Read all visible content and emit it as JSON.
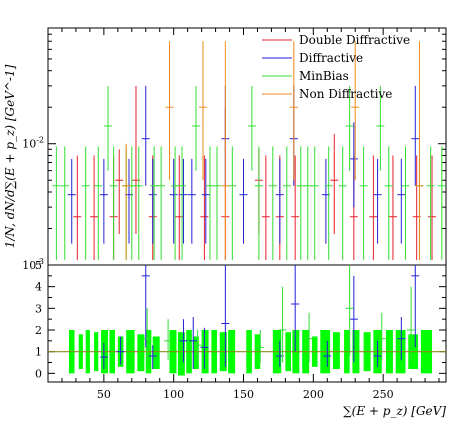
{
  "chart_data": [
    {
      "type": "scatter",
      "panel": "main",
      "ylabel": "1/N, dN/d∑(E + p_z) [GeV^-1]",
      "yscale": "log",
      "ylim": [
        0.001,
        0.09
      ],
      "xlim": [
        10,
        295
      ],
      "y_tick_labels": [
        "10^-3",
        "10^-2"
      ],
      "grid": false,
      "legend_position": "top-right",
      "colors": {
        "Double Diffractive": "#e8202a",
        "Diffractive": "#2121d8",
        "MinBias": "#33dd33",
        "Non Diffractive": "#ee8a1c"
      },
      "series": [
        {
          "name": "Double Diffractive",
          "points": [
            {
              "x": 31,
              "y": 0.0025,
              "ylo": 0.0011,
              "yhi": 0.008
            },
            {
              "x": 43,
              "y": 0.0025,
              "ylo": 0.0011,
              "yhi": 0.008
            },
            {
              "x": 57,
              "y": 0.0025,
              "ylo": 0.0011,
              "yhi": 0.008
            },
            {
              "x": 61,
              "y": 0.005,
              "ylo": 0.0018,
              "yhi": 0.009
            },
            {
              "x": 73,
              "y": 0.005,
              "ylo": 0.0018,
              "yhi": 0.03
            },
            {
              "x": 85,
              "y": 0.0025,
              "ylo": 0.0011,
              "yhi": 0.008
            },
            {
              "x": 104,
              "y": 0.0025,
              "ylo": 0.0011,
              "yhi": 0.008
            },
            {
              "x": 122,
              "y": 0.0025,
              "ylo": 0.0011,
              "yhi": 0.008
            },
            {
              "x": 137,
              "y": 0.0025,
              "ylo": 0.0011,
              "yhi": 0.02
            },
            {
              "x": 161,
              "y": 0.005,
              "ylo": 0.0018,
              "yhi": 0.009
            },
            {
              "x": 166,
              "y": 0.0025,
              "ylo": 0.0011,
              "yhi": 0.008
            },
            {
              "x": 176,
              "y": 0.0025,
              "ylo": 0.0011,
              "yhi": 0.008
            },
            {
              "x": 187,
              "y": 0.0025,
              "ylo": 0.0011,
              "yhi": 0.008
            },
            {
              "x": 215,
              "y": 0.005,
              "ylo": 0.0018,
              "yhi": 0.012
            },
            {
              "x": 229,
              "y": 0.0025,
              "ylo": 0.0011,
              "yhi": 0.008
            },
            {
              "x": 243,
              "y": 0.0025,
              "ylo": 0.0011,
              "yhi": 0.008
            },
            {
              "x": 257,
              "y": 0.0025,
              "ylo": 0.0011,
              "yhi": 0.008
            },
            {
              "x": 274,
              "y": 0.0025,
              "ylo": 0.0011,
              "yhi": 0.008
            },
            {
              "x": 285,
              "y": 0.0025,
              "ylo": 0.0011,
              "yhi": 0.008
            }
          ]
        },
        {
          "name": "Diffractive",
          "points": [
            {
              "x": 27,
              "y": 0.0038,
              "ylo": 0.0015,
              "yhi": 0.0075
            },
            {
              "x": 50,
              "y": 0.0038,
              "ylo": 0.0015,
              "yhi": 0.0075
            },
            {
              "x": 68,
              "y": 0.0038,
              "ylo": 0.0015,
              "yhi": 0.0075
            },
            {
              "x": 80,
              "y": 0.011,
              "ylo": 0.0045,
              "yhi": 0.03
            },
            {
              "x": 85,
              "y": 0.0038,
              "ylo": 0.0015,
              "yhi": 0.0075
            },
            {
              "x": 100,
              "y": 0.0038,
              "ylo": 0.0015,
              "yhi": 0.0075
            },
            {
              "x": 107,
              "y": 0.0038,
              "ylo": 0.0015,
              "yhi": 0.0075
            },
            {
              "x": 113,
              "y": 0.0038,
              "ylo": 0.0015,
              "yhi": 0.0075
            },
            {
              "x": 123,
              "y": 0.0038,
              "ylo": 0.0015,
              "yhi": 0.0075
            },
            {
              "x": 137,
              "y": 0.011,
              "ylo": 0.0045,
              "yhi": 0.03
            },
            {
              "x": 150,
              "y": 0.0038,
              "ylo": 0.0015,
              "yhi": 0.0075
            },
            {
              "x": 176,
              "y": 0.0038,
              "ylo": 0.0015,
              "yhi": 0.0075
            },
            {
              "x": 186,
              "y": 0.011,
              "ylo": 0.0045,
              "yhi": 0.03
            },
            {
              "x": 209,
              "y": 0.0038,
              "ylo": 0.0015,
              "yhi": 0.0075
            },
            {
              "x": 229,
              "y": 0.0075,
              "ylo": 0.003,
              "yhi": 0.015
            },
            {
              "x": 246,
              "y": 0.0038,
              "ylo": 0.0015,
              "yhi": 0.0075
            },
            {
              "x": 263,
              "y": 0.0038,
              "ylo": 0.0015,
              "yhi": 0.0075
            },
            {
              "x": 273,
              "y": 0.011,
              "ylo": 0.0045,
              "yhi": 0.03
            }
          ]
        },
        {
          "name": "MinBias",
          "points": [
            {
              "x": 16,
              "y": 0.0045,
              "ylo": 0.0011,
              "yhi": 0.0095
            },
            {
              "x": 22,
              "y": 0.0045,
              "ylo": 0.0011,
              "yhi": 0.0095
            },
            {
              "x": 37,
              "y": 0.0045,
              "ylo": 0.0011,
              "yhi": 0.0095
            },
            {
              "x": 46,
              "y": 0.0045,
              "ylo": 0.0011,
              "yhi": 0.0095
            },
            {
              "x": 53,
              "y": 0.014,
              "ylo": 0.006,
              "yhi": 0.03
            },
            {
              "x": 57,
              "y": 0.0045,
              "ylo": 0.0011,
              "yhi": 0.0095
            },
            {
              "x": 66,
              "y": 0.0045,
              "ylo": 0.0011,
              "yhi": 0.0095
            },
            {
              "x": 70,
              "y": 0.0045,
              "ylo": 0.0011,
              "yhi": 0.0095
            },
            {
              "x": 75,
              "y": 0.0045,
              "ylo": 0.0011,
              "yhi": 0.0095
            },
            {
              "x": 86,
              "y": 0.0045,
              "ylo": 0.0011,
              "yhi": 0.0095
            },
            {
              "x": 91,
              "y": 0.0045,
              "ylo": 0.0011,
              "yhi": 0.0095
            },
            {
              "x": 101,
              "y": 0.0045,
              "ylo": 0.0011,
              "yhi": 0.0095
            },
            {
              "x": 106,
              "y": 0.0045,
              "ylo": 0.0011,
              "yhi": 0.0095
            },
            {
              "x": 116,
              "y": 0.014,
              "ylo": 0.006,
              "yhi": 0.03
            },
            {
              "x": 126,
              "y": 0.0045,
              "ylo": 0.0011,
              "yhi": 0.0095
            },
            {
              "x": 131,
              "y": 0.0045,
              "ylo": 0.0011,
              "yhi": 0.0095
            },
            {
              "x": 142,
              "y": 0.0045,
              "ylo": 0.0011,
              "yhi": 0.0095
            },
            {
              "x": 156,
              "y": 0.014,
              "ylo": 0.006,
              "yhi": 0.03
            },
            {
              "x": 161,
              "y": 0.0045,
              "ylo": 0.0011,
              "yhi": 0.0095
            },
            {
              "x": 171,
              "y": 0.0045,
              "ylo": 0.0011,
              "yhi": 0.0095
            },
            {
              "x": 181,
              "y": 0.0045,
              "ylo": 0.0011,
              "yhi": 0.0095
            },
            {
              "x": 191,
              "y": 0.0045,
              "ylo": 0.0011,
              "yhi": 0.0095
            },
            {
              "x": 196,
              "y": 0.0045,
              "ylo": 0.0011,
              "yhi": 0.0095
            },
            {
              "x": 201,
              "y": 0.0045,
              "ylo": 0.0011,
              "yhi": 0.0095
            },
            {
              "x": 211,
              "y": 0.0045,
              "ylo": 0.0011,
              "yhi": 0.0095
            },
            {
              "x": 221,
              "y": 0.0045,
              "ylo": 0.0011,
              "yhi": 0.0095
            },
            {
              "x": 226,
              "y": 0.014,
              "ylo": 0.006,
              "yhi": 0.03
            },
            {
              "x": 236,
              "y": 0.0045,
              "ylo": 0.0011,
              "yhi": 0.0095
            },
            {
              "x": 248,
              "y": 0.014,
              "ylo": 0.006,
              "yhi": 0.03
            },
            {
              "x": 254,
              "y": 0.0045,
              "ylo": 0.0011,
              "yhi": 0.0095
            },
            {
              "x": 266,
              "y": 0.0045,
              "ylo": 0.0011,
              "yhi": 0.0095
            },
            {
              "x": 276,
              "y": 0.0045,
              "ylo": 0.0011,
              "yhi": 0.0095
            },
            {
              "x": 284,
              "y": 0.0045,
              "ylo": 0.0011,
              "yhi": 0.0095
            },
            {
              "x": 292,
              "y": 0.0045,
              "ylo": 0.0011,
              "yhi": 0.0095
            }
          ]
        },
        {
          "name": "Non Diffractive",
          "points": [
            {
              "x": 66,
              "y": 0.0045,
              "ylo": 0.0011,
              "yhi": 0.01
            },
            {
              "x": 97,
              "y": 0.02,
              "ylo": 0.005,
              "yhi": 0.07
            },
            {
              "x": 121,
              "y": 0.02,
              "ylo": 0.005,
              "yhi": 0.07
            },
            {
              "x": 137,
              "y": 0.0045,
              "ylo": 0.0011,
              "yhi": 0.07
            },
            {
              "x": 186,
              "y": 0.02,
              "ylo": 0.005,
              "yhi": 0.07
            },
            {
              "x": 230,
              "y": 0.02,
              "ylo": 0.005,
              "yhi": 0.07
            },
            {
              "x": 276,
              "y": 0.0045,
              "ylo": 0.0011,
              "yhi": 0.07
            }
          ]
        }
      ]
    },
    {
      "type": "scatter",
      "panel": "ratio",
      "xlabel": "∑(E + p_z) [GeV]",
      "ylim": [
        -0.4,
        5
      ],
      "xlim": [
        10,
        295
      ],
      "x_tick_labels": [
        "50",
        "100",
        "150",
        "200",
        "250"
      ],
      "y_tick_labels": [
        "0",
        "1",
        "2",
        "3",
        "4",
        "5"
      ],
      "reference_line": {
        "y": 1,
        "color": "#8b8b1a"
      },
      "band": {
        "color": "#00ff00",
        "boxes": [
          {
            "x0": 25,
            "x1": 29,
            "y0": 0,
            "y1": 2
          },
          {
            "x0": 32,
            "x1": 35,
            "y0": 0.2,
            "y1": 1.8
          },
          {
            "x0": 37,
            "x1": 40,
            "y0": 0,
            "y1": 2
          },
          {
            "x0": 43,
            "x1": 46,
            "y0": 0.1,
            "y1": 1.9
          },
          {
            "x0": 48,
            "x1": 53,
            "y0": 0,
            "y1": 2
          },
          {
            "x0": 54,
            "x1": 58,
            "y0": 0,
            "y1": 2
          },
          {
            "x0": 60,
            "x1": 64,
            "y0": 0.3,
            "y1": 1.7
          },
          {
            "x0": 66,
            "x1": 72,
            "y0": 0,
            "y1": 2
          },
          {
            "x0": 74,
            "x1": 79,
            "y0": 0.1,
            "y1": 1.8
          },
          {
            "x0": 80,
            "x1": 84,
            "y0": 0,
            "y1": 2
          },
          {
            "x0": 85,
            "x1": 90,
            "y0": 0.2,
            "y1": 1.7
          },
          {
            "x0": 97,
            "x1": 102,
            "y0": 0,
            "y1": 2
          },
          {
            "x0": 103,
            "x1": 108,
            "y0": -0.1,
            "y1": 1.9
          },
          {
            "x0": 109,
            "x1": 113,
            "y0": 0,
            "y1": 2
          },
          {
            "x0": 114,
            "x1": 118,
            "y0": 0.2,
            "y1": 1.7
          },
          {
            "x0": 120,
            "x1": 125,
            "y0": 0,
            "y1": 2
          },
          {
            "x0": 127,
            "x1": 131,
            "y0": 0,
            "y1": 2
          },
          {
            "x0": 133,
            "x1": 138,
            "y0": 0.1,
            "y1": 1.9
          },
          {
            "x0": 139,
            "x1": 144,
            "y0": 0,
            "y1": 2
          },
          {
            "x0": 152,
            "x1": 156,
            "y0": 0,
            "y1": 2
          },
          {
            "x0": 158,
            "x1": 162,
            "y0": 0.2,
            "y1": 1.8
          },
          {
            "x0": 171,
            "x1": 177,
            "y0": 0,
            "y1": 2
          },
          {
            "x0": 180,
            "x1": 184,
            "y0": 0.1,
            "y1": 1.9
          },
          {
            "x0": 185,
            "x1": 190,
            "y0": 0,
            "y1": 2
          },
          {
            "x0": 192,
            "x1": 197,
            "y0": 0,
            "y1": 2
          },
          {
            "x0": 199,
            "x1": 203,
            "y0": 0.3,
            "y1": 1.7
          },
          {
            "x0": 205,
            "x1": 212,
            "y0": 0,
            "y1": 2
          },
          {
            "x0": 214,
            "x1": 219,
            "y0": 0.2,
            "y1": 1.9
          },
          {
            "x0": 222,
            "x1": 226,
            "y0": 0,
            "y1": 2
          },
          {
            "x0": 228,
            "x1": 233,
            "y0": 0,
            "y1": 2
          },
          {
            "x0": 236,
            "x1": 241,
            "y0": 0.1,
            "y1": 1.9
          },
          {
            "x0": 243,
            "x1": 249,
            "y0": 0,
            "y1": 2
          },
          {
            "x0": 252,
            "x1": 257,
            "y0": 0,
            "y1": 2
          },
          {
            "x0": 259,
            "x1": 266,
            "y0": 0,
            "y1": 2
          },
          {
            "x0": 268,
            "x1": 275,
            "y0": 0.2,
            "y1": 1.8
          },
          {
            "x0": 277,
            "x1": 285,
            "y0": 0,
            "y1": 2
          }
        ]
      },
      "points": [
        {
          "x": 50,
          "y": 0.75,
          "ylo": 0.2,
          "yhi": 1.4,
          "color": "#2121d8"
        },
        {
          "x": 62,
          "y": 1.0,
          "ylo": 0.4,
          "yhi": 1.7,
          "color": "#2121d8"
        },
        {
          "x": 80,
          "y": 4.5,
          "ylo": 1.2,
          "yhi": 5,
          "color": "#2121d8"
        },
        {
          "x": 85,
          "y": 0.8,
          "ylo": 0.2,
          "yhi": 1.3,
          "color": "#2121d8"
        },
        {
          "x": 107,
          "y": 1.5,
          "ylo": 0.5,
          "yhi": 2.5,
          "color": "#2121d8"
        },
        {
          "x": 114,
          "y": 1.5,
          "ylo": 0.2,
          "yhi": 2.6,
          "color": "#2121d8"
        },
        {
          "x": 122,
          "y": 1.2,
          "ylo": 0.2,
          "yhi": 2.1,
          "color": "#2121d8"
        },
        {
          "x": 137,
          "y": 2.3,
          "ylo": 0.3,
          "yhi": 5,
          "color": "#2121d8"
        },
        {
          "x": 176,
          "y": 0.8,
          "ylo": 0.3,
          "yhi": 1.5,
          "color": "#2121d8"
        },
        {
          "x": 187,
          "y": 3.2,
          "ylo": 1.0,
          "yhi": 5,
          "color": "#2121d8"
        },
        {
          "x": 210,
          "y": 0.8,
          "ylo": 0.3,
          "yhi": 1.5,
          "color": "#2121d8"
        },
        {
          "x": 229,
          "y": 2.5,
          "ylo": 0.5,
          "yhi": 4.5,
          "color": "#2121d8"
        },
        {
          "x": 246,
          "y": 0.8,
          "ylo": 0.3,
          "yhi": 1.5,
          "color": "#2121d8"
        },
        {
          "x": 263,
          "y": 1.6,
          "ylo": 0.6,
          "yhi": 2.6,
          "color": "#2121d8"
        },
        {
          "x": 273,
          "y": 4.5,
          "ylo": 1.2,
          "yhi": 5,
          "color": "#2121d8"
        },
        {
          "x": 81,
          "y": 1.6,
          "ylo": 0.5,
          "yhi": 3,
          "color": "#33dd33"
        },
        {
          "x": 96,
          "y": 1.5,
          "ylo": 0.6,
          "yhi": 2.5,
          "color": "#33dd33"
        },
        {
          "x": 117,
          "y": 1.3,
          "ylo": 0.5,
          "yhi": 2,
          "color": "#33dd33"
        },
        {
          "x": 162,
          "y": 1.2,
          "ylo": 0.5,
          "yhi": 2,
          "color": "#33dd33"
        },
        {
          "x": 178,
          "y": 2.0,
          "ylo": 0.5,
          "yhi": 4,
          "color": "#33dd33"
        },
        {
          "x": 197,
          "y": 1.6,
          "ylo": 0.5,
          "yhi": 2.8,
          "color": "#33dd33"
        },
        {
          "x": 226,
          "y": 3.0,
          "ylo": 0.8,
          "yhi": 5,
          "color": "#33dd33"
        },
        {
          "x": 249,
          "y": 1.6,
          "ylo": 0.6,
          "yhi": 2.8,
          "color": "#33dd33"
        },
        {
          "x": 270,
          "y": 2.0,
          "ylo": 0.5,
          "yhi": 4,
          "color": "#33dd33"
        }
      ]
    }
  ]
}
